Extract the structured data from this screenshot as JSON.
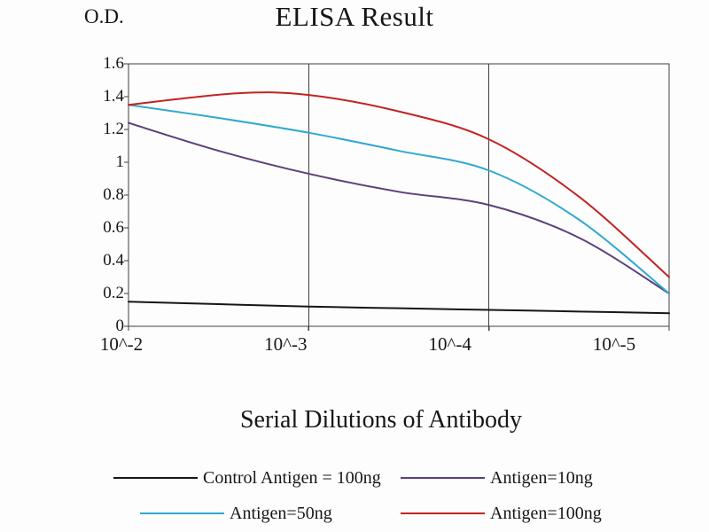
{
  "chart_data": {
    "type": "line",
    "title": "ELISA Result",
    "ylabel": "O.D.",
    "xlabel": "Serial Dilutions of Antibody",
    "categories": [
      "10^-2",
      "10^-3",
      "10^-4",
      "10^-5"
    ],
    "y_tick_labels": [
      "0",
      "0.2",
      "0.4",
      "0.6",
      "0.8",
      "1",
      "1.2",
      "1.4",
      "1.6"
    ],
    "ylim": [
      0,
      1.6
    ],
    "grid": "vertical-gridlines-only",
    "grid_color": "#3f3f3f",
    "text_color": "#161616",
    "legend_position": "bottom",
    "smooth_lines": true,
    "series": [
      {
        "name": "Control Antigen = 100ng",
        "color": "#161616",
        "values": [
          0.15,
          0.12,
          0.1,
          0.08
        ],
        "curve_samples": [
          [
            0,
            0.15
          ],
          [
            0.5,
            0.135
          ],
          [
            1,
            0.12
          ],
          [
            1.5,
            0.11
          ],
          [
            2,
            0.1
          ],
          [
            2.5,
            0.09
          ],
          [
            3,
            0.08
          ]
        ]
      },
      {
        "name": "Antigen=10ng",
        "color": "#5b4079",
        "values": [
          1.24,
          0.93,
          0.74,
          0.2
        ],
        "curve_samples": [
          [
            0,
            1.24
          ],
          [
            0.5,
            1.07
          ],
          [
            1,
            0.93
          ],
          [
            1.5,
            0.82
          ],
          [
            2,
            0.74
          ],
          [
            2.5,
            0.54
          ],
          [
            3,
            0.2
          ]
        ]
      },
      {
        "name": "Antigen=50ng",
        "color": "#31a8cf",
        "values": [
          1.35,
          1.18,
          0.95,
          0.2
        ],
        "curve_samples": [
          [
            0,
            1.35
          ],
          [
            0.5,
            1.27
          ],
          [
            1,
            1.18
          ],
          [
            1.5,
            1.07
          ],
          [
            2,
            0.95
          ],
          [
            2.5,
            0.65
          ],
          [
            3,
            0.2
          ]
        ]
      },
      {
        "name": "Antigen=100ng",
        "color": "#c32222",
        "values": [
          1.35,
          1.41,
          1.14,
          0.3
        ],
        "curve_samples": [
          [
            0,
            1.35
          ],
          [
            0.6,
            1.42
          ],
          [
            1,
            1.41
          ],
          [
            1.5,
            1.31
          ],
          [
            2,
            1.14
          ],
          [
            2.5,
            0.79
          ],
          [
            3,
            0.3
          ]
        ]
      }
    ]
  }
}
